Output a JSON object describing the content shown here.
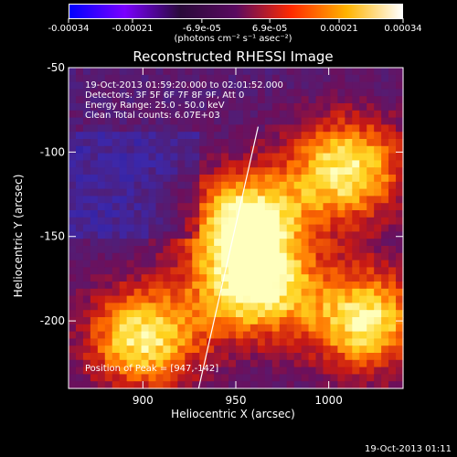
{
  "colorbar": {
    "labels": [
      "-0.00034",
      "-0.00021",
      "-6.9e-05",
      "6.9e-05",
      "0.00021",
      "0.00034"
    ],
    "values": [
      -0.00034,
      -0.00021,
      -6.9e-05,
      6.9e-05,
      0.00021,
      0.00034
    ],
    "unit": "(photons cm⁻² s⁻¹ asec⁻²)",
    "colors": [
      "#0000ff",
      "#7a00ff",
      "#2a0a3a",
      "#5a0a60",
      "#ff2a00",
      "#ffb400",
      "#ffffff"
    ]
  },
  "chart_data": {
    "type": "heatmap",
    "title": "Reconstructed RHESSI Image",
    "xlabel": "Heliocentric X (arcsec)",
    "ylabel": "Heliocentric Y (arcsec)",
    "xlim": [
      860,
      1040
    ],
    "ylim": [
      -240,
      -50
    ],
    "xticks": [
      900,
      950,
      1000
    ],
    "yticks": [
      -200,
      -150,
      -100,
      -50
    ],
    "limb_line": [
      [
        930,
        -240
      ],
      [
        962,
        -85
      ]
    ],
    "peak": [
      947,
      -142
    ],
    "bright_sources": [
      [
        955,
        -140
      ],
      [
        960,
        -180
      ],
      [
        1010,
        -110
      ],
      [
        1020,
        -200
      ],
      [
        900,
        -210
      ]
    ]
  },
  "annotations": {
    "lines": [
      "19-Oct-2013 01:59:20.000 to 02:01:52.000",
      "Detectors: 3F 5F 6F 7F 8F 9F, Att 0",
      "Energy Range: 25.0 - 50.0 keV",
      "Clean     Total counts: 6.07E+03"
    ],
    "peak_text": "Position of Peak = [947,-142]"
  },
  "timestamp": "19-Oct-2013 01:11"
}
